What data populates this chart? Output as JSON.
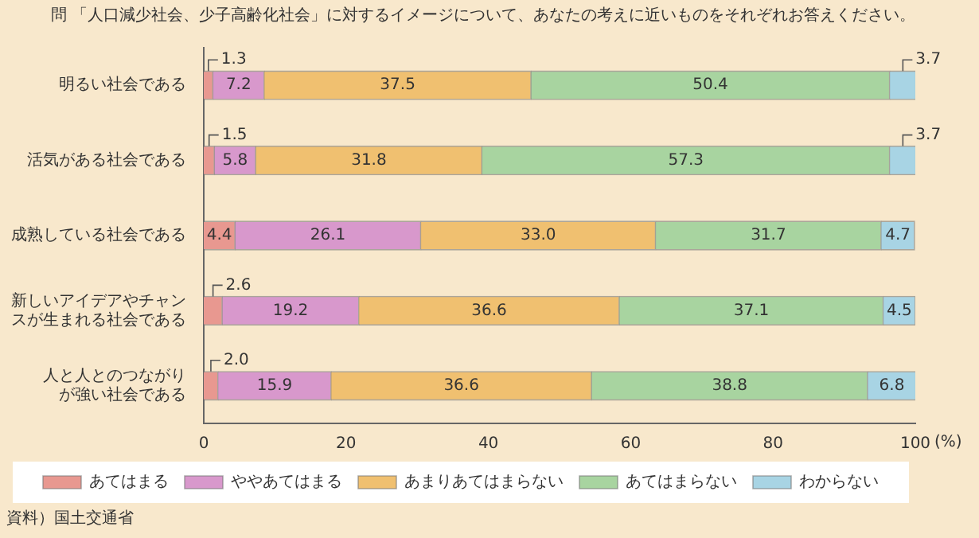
{
  "chart_data": {
    "type": "bar",
    "orientation": "horizontal",
    "stacked": true,
    "title": "問 「人口減少社会、少子高齢化社会」に対するイメージについて、あなたの考えに近いものをそれぞれお答えください。",
    "xlabel": "(%)",
    "categories": [
      "明るい社会である",
      "活気がある社会である",
      "成熟している社会である",
      "新しいアイデアやチャンスが生まれる社会である",
      "人と人とのつながりが強い社会である"
    ],
    "series": [
      {
        "name": "あてはまる",
        "color": "#e89890",
        "values": [
          1.3,
          1.5,
          4.4,
          2.6,
          2.0
        ],
        "value_labels": [
          "1.3",
          "1.5",
          "4.4",
          "2.6",
          "2.0"
        ]
      },
      {
        "name": "ややあてはまる",
        "color": "#d898cc",
        "values": [
          7.2,
          5.8,
          26.1,
          19.2,
          15.9
        ],
        "value_labels": [
          "7.2",
          "5.8",
          "26.1",
          "19.2",
          "15.9"
        ]
      },
      {
        "name": "あまりあてはまらない",
        "color": "#f0c070",
        "values": [
          37.5,
          31.8,
          33.0,
          36.6,
          36.6
        ],
        "value_labels": [
          "37.5",
          "31.8",
          "33.0",
          "36.6",
          "36.6"
        ]
      },
      {
        "name": "あてはまらない",
        "color": "#a8d4a0",
        "values": [
          50.4,
          57.3,
          31.7,
          37.1,
          38.8
        ],
        "value_labels": [
          "50.4",
          "57.3",
          "31.7",
          "37.1",
          "38.8"
        ]
      },
      {
        "name": "わからない",
        "color": "#a8d4e4",
        "values": [
          3.7,
          3.7,
          4.7,
          4.5,
          6.8
        ],
        "value_labels": [
          "3.7",
          "3.7",
          "4.7",
          "4.5",
          "6.8"
        ]
      }
    ],
    "xlim": [
      0,
      100
    ],
    "xticks": [
      0,
      20,
      40,
      60,
      80,
      100
    ],
    "grid": false,
    "legend": "bottom",
    "annotations": [
      "資料）国土交通省"
    ]
  }
}
